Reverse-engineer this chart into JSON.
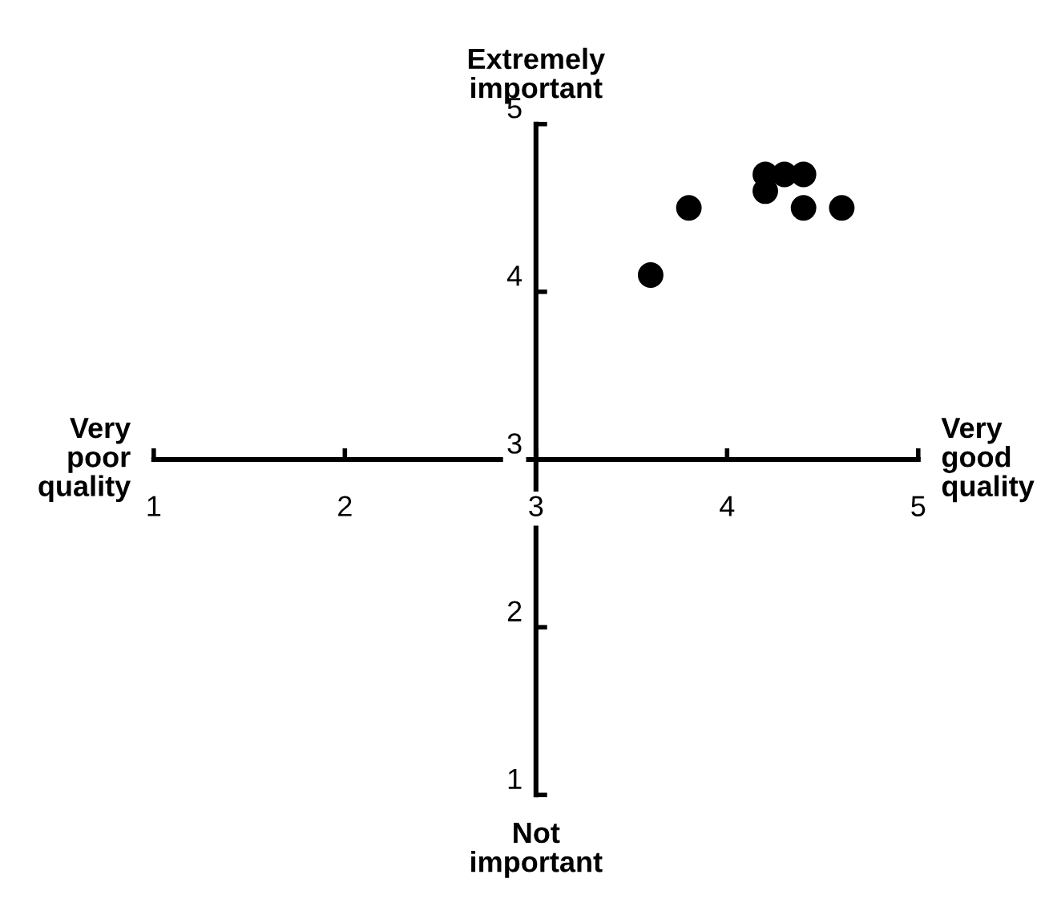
{
  "chart_data": {
    "type": "scatter",
    "x": [
      3.6,
      3.8,
      4.2,
      4.2,
      4.3,
      4.4,
      4.4,
      4.6
    ],
    "values": [
      4.1,
      4.5,
      4.6,
      4.7,
      4.7,
      4.7,
      4.5,
      4.5
    ],
    "color": "#000000",
    "marker": "circle",
    "xlim": [
      1,
      5
    ],
    "ylim": [
      1,
      5
    ],
    "xticks": [
      1,
      2,
      3,
      4,
      5
    ],
    "yticks": [
      1,
      2,
      3,
      4,
      5
    ],
    "grid": false,
    "annotations": [
      "Very\npoor\nquality",
      "Very\ngood\nquality",
      "Extremely\nimportant",
      "Not\nimportant"
    ]
  }
}
